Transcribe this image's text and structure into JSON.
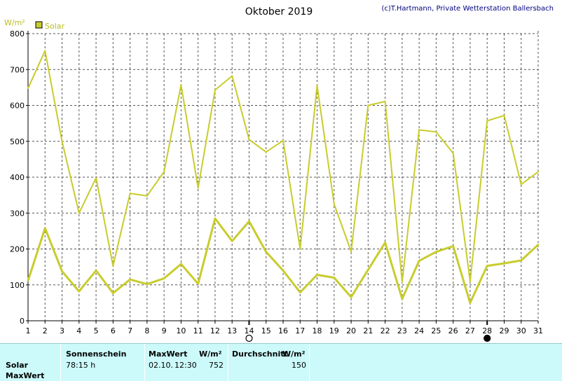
{
  "chart_data": {
    "type": "line",
    "title": "Oktober 2019",
    "credit": "(c)T.Hartmann, Private Wetterstation Ballersbach",
    "ylabel": "W/m²",
    "ylim": [
      0,
      800
    ],
    "yticks": [
      0,
      100,
      200,
      300,
      400,
      500,
      600,
      700,
      800
    ],
    "grid": true,
    "legend": {
      "position": "top-left",
      "entries": [
        "Solar"
      ]
    },
    "x": [
      1,
      2,
      3,
      4,
      5,
      6,
      7,
      8,
      9,
      10,
      11,
      12,
      13,
      14,
      15,
      16,
      17,
      18,
      19,
      20,
      21,
      22,
      23,
      24,
      25,
      26,
      27,
      28,
      29,
      30,
      31
    ],
    "series": [
      {
        "name": "Solar",
        "kind": "max",
        "values": [
          648,
          752,
          500,
          300,
          398,
          153,
          355,
          348,
          415,
          657,
          370,
          643,
          682,
          505,
          470,
          502,
          200,
          655,
          325,
          193,
          600,
          611,
          108,
          532,
          526,
          467,
          110,
          557,
          572,
          380,
          415
        ]
      },
      {
        "name": "Solar",
        "kind": "average",
        "values": [
          112,
          258,
          138,
          82,
          140,
          77,
          115,
          102,
          118,
          158,
          103,
          285,
          222,
          277,
          192,
          140,
          79,
          128,
          120,
          66,
          142,
          218,
          61,
          167,
          192,
          208,
          50,
          153,
          160,
          168,
          212
        ]
      }
    ],
    "color": "#c8cc2c",
    "moon_phases": [
      {
        "day": 14,
        "phase": "full-moon"
      },
      {
        "day": 28,
        "phase": "new-moon"
      }
    ]
  },
  "summary": {
    "row_labels": [
      "Solar",
      "MaxWert"
    ],
    "col_sunshine": "Sonnenschein",
    "col_max": "MaxWert",
    "col_max_unit": "W/m²",
    "col_avg": "Durchschnitt",
    "col_avg_unit": "W/m²",
    "sunshine_value": "78:15 h",
    "max_date": "02.10.",
    "max_time": "12:30",
    "max_value": "752",
    "avg_value": "150"
  }
}
